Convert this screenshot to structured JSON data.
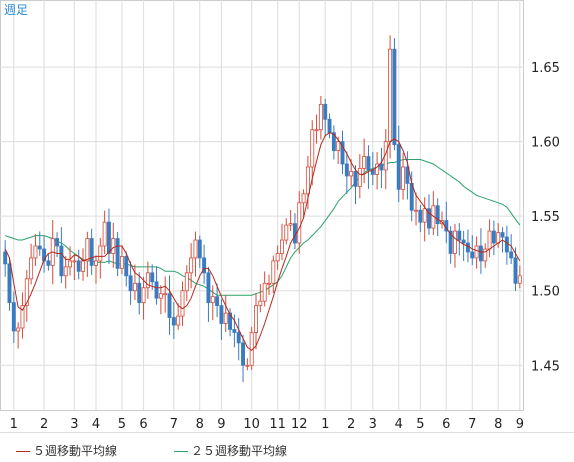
{
  "chart_data": {
    "type": "candlestick",
    "title": "週足",
    "ylim": [
      1.42,
      1.695
    ],
    "yticks": [
      "1.45",
      "1.50",
      "1.55",
      "1.60",
      "1.65"
    ],
    "xticks": [
      "1",
      "2",
      "3",
      "4",
      "5",
      "6",
      "7",
      "8",
      "9",
      "10",
      "11",
      "12",
      "1",
      "2",
      "3",
      "4",
      "5",
      "6",
      "7",
      "8",
      "9"
    ],
    "colors": {
      "up": "#d64b3a",
      "down": "#3b7bbf",
      "ma5": "#b52a1c",
      "ma25": "#2aa36a",
      "grid": "#dddddd"
    },
    "legend": [
      {
        "label": "５週移動平均線",
        "color": "#b52a1c"
      },
      {
        "label": "２５週移動平均線",
        "color": "#2aa36a"
      }
    ],
    "closes": [
      1.518,
      1.492,
      1.473,
      1.475,
      1.49,
      1.508,
      1.522,
      1.53,
      1.528,
      1.52,
      1.517,
      1.535,
      1.53,
      1.51,
      1.516,
      1.52,
      1.52,
      1.513,
      1.52,
      1.535,
      1.517,
      1.52,
      1.53,
      1.546,
      1.525,
      1.535,
      1.515,
      1.523,
      1.51,
      1.5,
      1.505,
      1.492,
      1.502,
      1.512,
      1.506,
      1.495,
      1.498,
      1.498,
      1.482,
      1.477,
      1.483,
      1.5,
      1.512,
      1.522,
      1.534,
      1.522,
      1.512,
      1.492,
      1.496,
      1.49,
      1.478,
      1.485,
      1.474,
      1.472,
      1.465,
      1.45,
      1.45,
      1.472,
      1.49,
      1.493,
      1.505,
      1.505,
      1.52,
      1.525,
      1.534,
      1.544,
      1.545,
      1.532,
      1.559,
      1.565,
      1.583,
      1.608,
      1.608,
      1.625,
      1.615,
      1.606,
      1.594,
      1.6,
      1.585,
      1.577,
      1.58,
      1.57,
      1.582,
      1.59,
      1.581,
      1.578,
      1.585,
      1.581,
      1.6,
      1.662,
      1.598,
      1.568,
      1.583,
      1.572,
      1.554,
      1.554,
      1.546,
      1.555,
      1.542,
      1.557,
      1.545,
      1.547,
      1.54,
      1.525,
      1.54,
      1.534,
      1.532,
      1.526,
      1.522,
      1.53,
      1.52,
      1.528,
      1.54,
      1.532,
      1.539,
      1.536,
      1.526,
      1.522,
      1.505,
      1.51
    ],
    "ma5": [
      1.528,
      1.522,
      1.505,
      1.489,
      1.487,
      1.492,
      1.498,
      1.505,
      1.513,
      1.521,
      1.525,
      1.526,
      1.525,
      1.525,
      1.521,
      1.521,
      1.524,
      1.523,
      1.52,
      1.521,
      1.522,
      1.523,
      1.523,
      1.523,
      1.526,
      1.529,
      1.53,
      1.53,
      1.525,
      1.518,
      1.512,
      1.51,
      1.507,
      1.504,
      1.503,
      1.502,
      1.502,
      1.503,
      1.5,
      1.495,
      1.49,
      1.488,
      1.49,
      1.495,
      1.503,
      1.51,
      1.515,
      1.515,
      1.51,
      1.503,
      1.496,
      1.49,
      1.484,
      1.48,
      1.474,
      1.468,
      1.462,
      1.46,
      1.463,
      1.47,
      1.478,
      1.487,
      1.496,
      1.506,
      1.515,
      1.523,
      1.532,
      1.537,
      1.542,
      1.549,
      1.562,
      1.575,
      1.587,
      1.598,
      1.604,
      1.606,
      1.605,
      1.601,
      1.597,
      1.592,
      1.586,
      1.581,
      1.578,
      1.578,
      1.58,
      1.581,
      1.583,
      1.586,
      1.592,
      1.6,
      1.602,
      1.6,
      1.594,
      1.586,
      1.572,
      1.564,
      1.56,
      1.556,
      1.552,
      1.55,
      1.548,
      1.546,
      1.542,
      1.538,
      1.535,
      1.533,
      1.531,
      1.53,
      1.528,
      1.527,
      1.526,
      1.526,
      1.528,
      1.53,
      1.532,
      1.534,
      1.532,
      1.53,
      1.525,
      1.52
    ],
    "ma25": [
      1.537,
      1.536,
      1.535,
      1.534,
      1.534,
      1.535,
      1.536,
      1.537,
      1.537,
      1.537,
      1.536,
      1.535,
      1.533,
      1.532,
      1.53,
      1.527,
      1.525,
      1.523,
      1.521,
      1.52,
      1.52,
      1.519,
      1.519,
      1.519,
      1.52,
      1.519,
      1.518,
      1.518,
      1.518,
      1.517,
      1.516,
      1.516,
      1.516,
      1.516,
      1.516,
      1.516,
      1.515,
      1.513,
      1.513,
      1.513,
      1.512,
      1.51,
      1.509,
      1.507,
      1.505,
      1.504,
      1.503,
      1.501,
      1.499,
      1.497,
      1.497,
      1.497,
      1.497,
      1.497,
      1.497,
      1.497,
      1.497,
      1.497,
      1.498,
      1.499,
      1.5,
      1.502,
      1.504,
      1.506,
      1.51,
      1.516,
      1.522,
      1.526,
      1.529,
      1.532,
      1.534,
      1.537,
      1.54,
      1.543,
      1.547,
      1.551,
      1.555,
      1.56,
      1.563,
      1.566,
      1.569,
      1.573,
      1.576,
      1.579,
      1.581,
      1.582,
      1.583,
      1.584,
      1.585,
      1.586,
      1.586,
      1.587,
      1.588,
      1.588,
      1.588,
      1.588,
      1.588,
      1.587,
      1.586,
      1.585,
      1.583,
      1.581,
      1.579,
      1.577,
      1.575,
      1.573,
      1.57,
      1.568,
      1.566,
      1.564,
      1.563,
      1.562,
      1.561,
      1.56,
      1.559,
      1.558,
      1.556,
      1.552,
      1.548,
      1.544
    ]
  }
}
